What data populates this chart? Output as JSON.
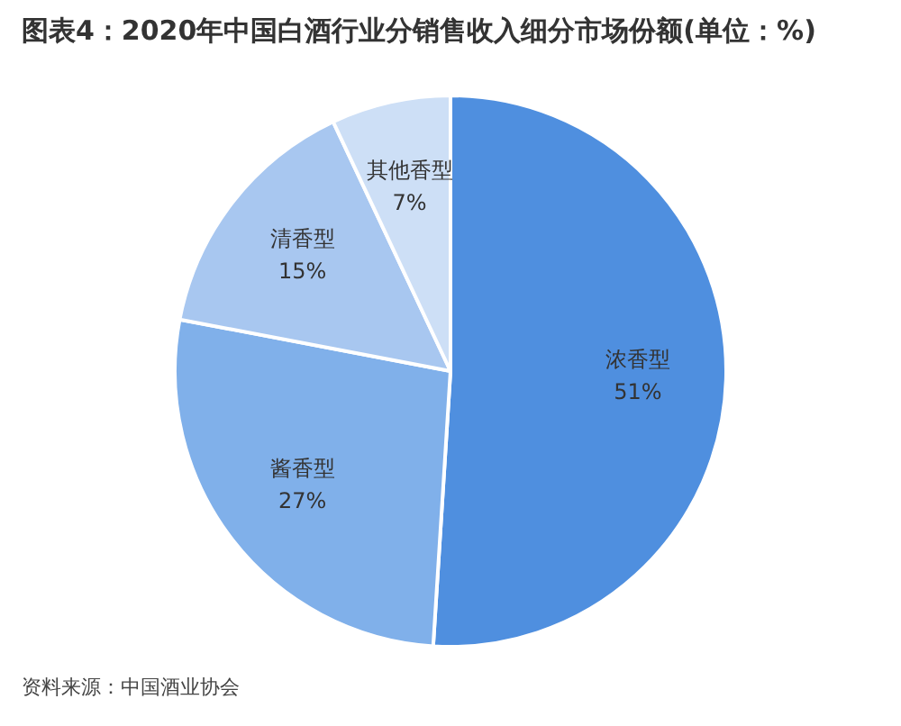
{
  "chart_data": {
    "type": "pie",
    "title": "图表4：2020年中国白酒行业分销售收入细分市场份额(单位：%)",
    "categories": [
      "浓香型",
      "酱香型",
      "清香型",
      "其他香型"
    ],
    "values": [
      51,
      27,
      15,
      7
    ],
    "colors": [
      "#4f8fdf",
      "#80b0ea",
      "#a8c7f0",
      "#cddff6"
    ],
    "value_labels": [
      "51%",
      "27%",
      "15%",
      "7%"
    ],
    "legend": false,
    "annotations": [
      "资料来源：中国酒业协会"
    ]
  }
}
